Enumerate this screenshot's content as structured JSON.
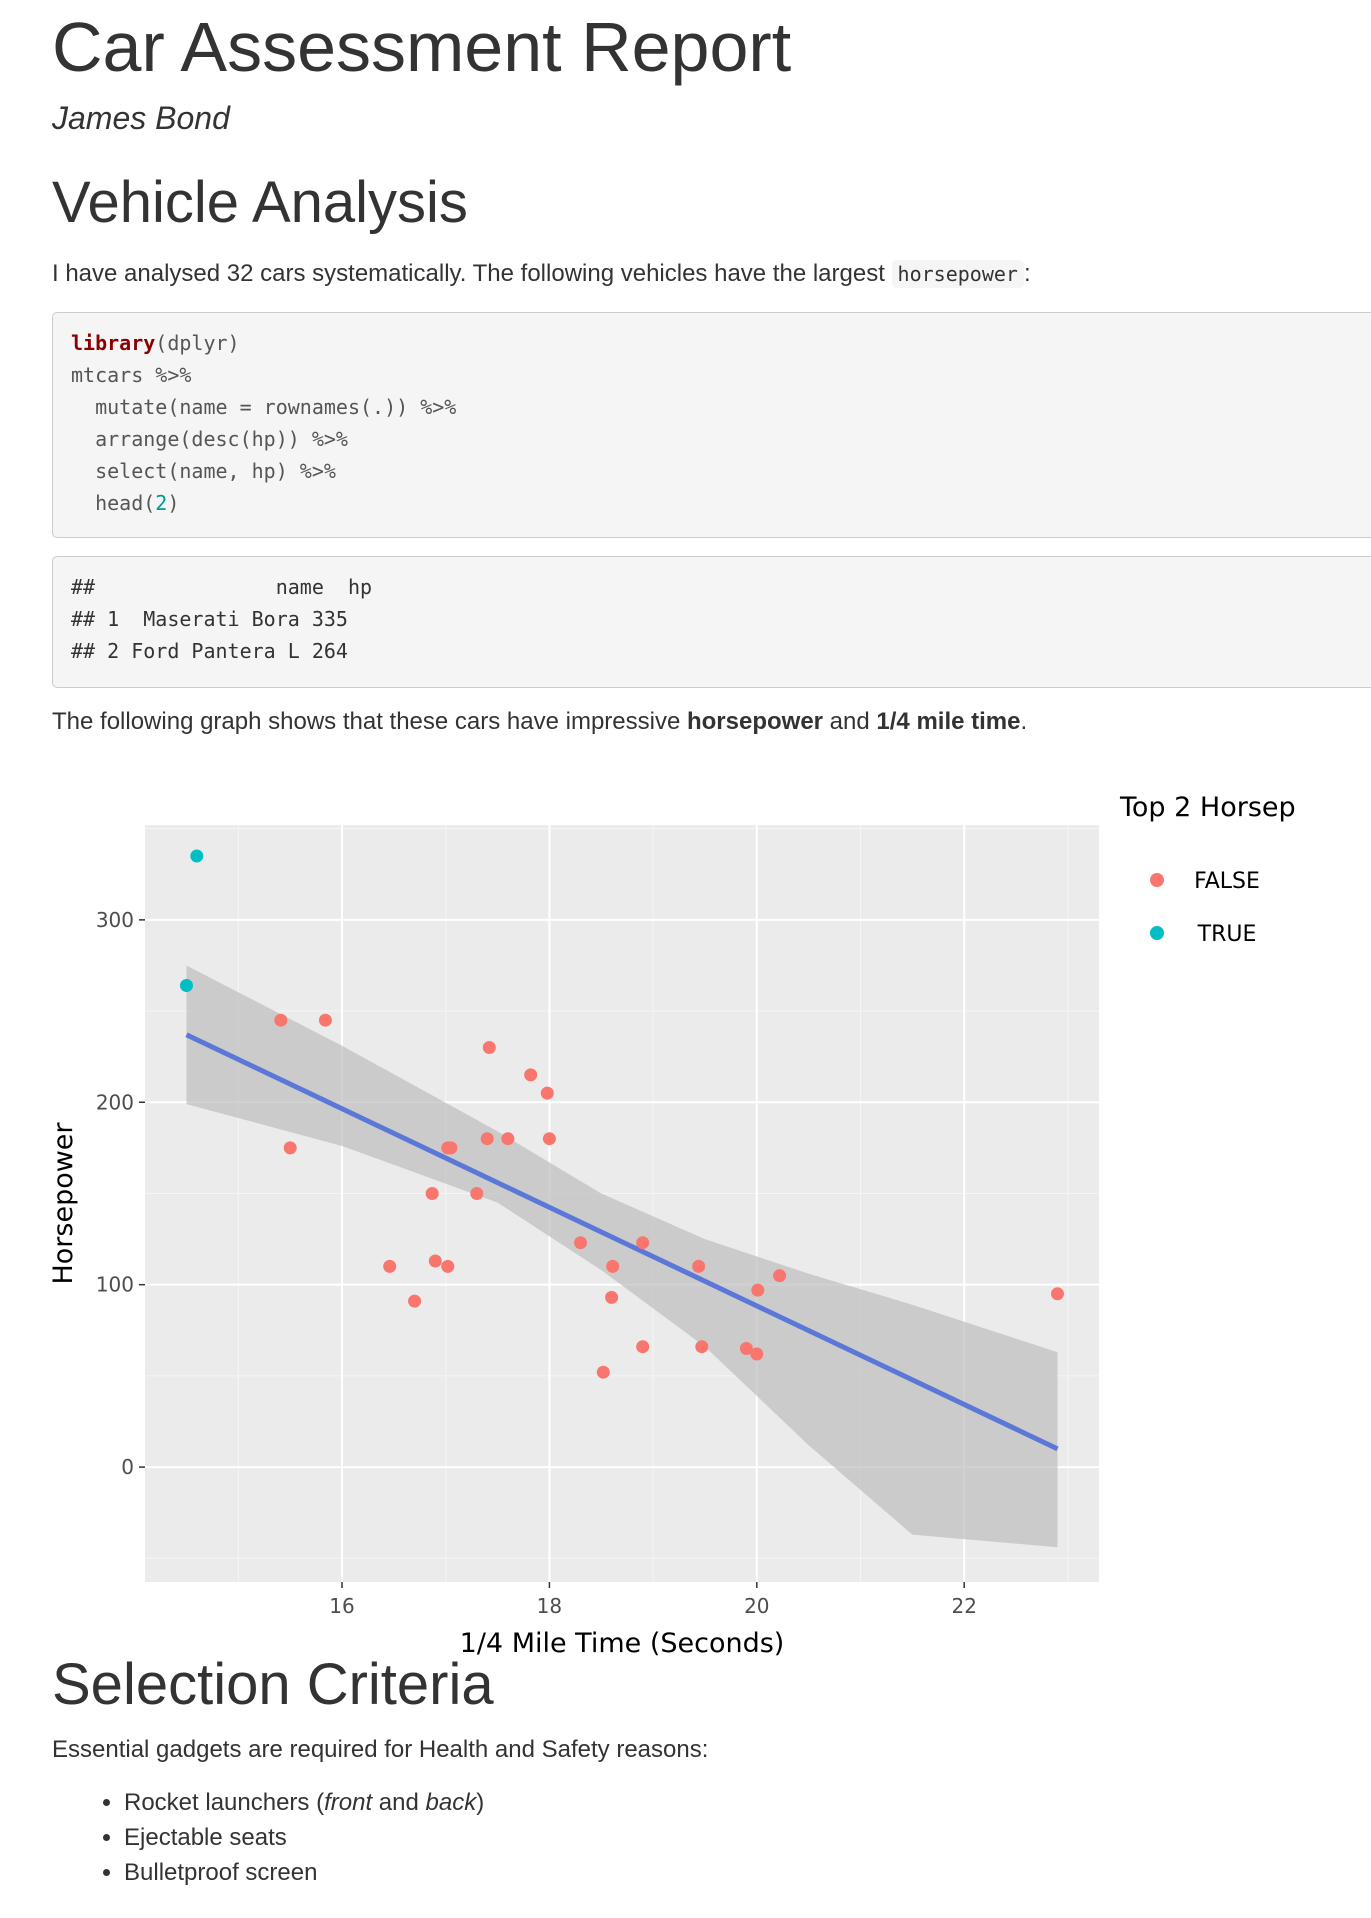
{
  "report": {
    "title": "Car Assessment Report",
    "author": "James Bond"
  },
  "analysis": {
    "heading": "Vehicle Analysis",
    "intro_prefix": "I have analysed 32 cars systematically. The following vehicles have the largest ",
    "intro_code": "horsepower",
    "intro_suffix": ":",
    "code_lines": [
      {
        "kw": "library",
        "rest": "(dplyr)"
      },
      {
        "kw": "",
        "rest": "mtcars %>%"
      },
      {
        "kw": "",
        "rest": "  mutate(name = rownames(.)) %>%"
      },
      {
        "kw": "",
        "rest": "  arrange(desc(hp)) %>%"
      },
      {
        "kw": "",
        "rest": "  select(name, hp) %>%"
      },
      {
        "kw": "",
        "rest": "  head(",
        "num": "2",
        "tail": ")"
      }
    ],
    "output_lines": [
      "##               name  hp",
      "## 1  Maserati Bora 335",
      "## 2 Ford Pantera L 264"
    ],
    "graph_prefix": "The following graph shows that these cars have impressive ",
    "graph_bold1": "horsepower",
    "graph_mid": " and ",
    "graph_bold2": "1/4 mile time",
    "graph_suffix": "."
  },
  "chart_data": {
    "type": "scatter",
    "title": "",
    "xlabel": "1/4 Mile Time (Seconds)",
    "ylabel": "Horsepower",
    "xlim": [
      14.1,
      23.3
    ],
    "ylim": [
      -63,
      352
    ],
    "xticks": [
      16,
      18,
      20,
      22
    ],
    "yticks": [
      0,
      100,
      200,
      300
    ],
    "grid": true,
    "legend_position": "right",
    "legend_title": "Top 2 Horsep",
    "series": [
      {
        "name": "FALSE",
        "color": "#F8766D",
        "points": [
          [
            15.41,
            245
          ],
          [
            15.84,
            245
          ],
          [
            15.5,
            175
          ],
          [
            17.42,
            230
          ],
          [
            17.82,
            215
          ],
          [
            17.98,
            205
          ],
          [
            17.02,
            175
          ],
          [
            17.05,
            175
          ],
          [
            17.4,
            180
          ],
          [
            17.6,
            180
          ],
          [
            18.0,
            180
          ],
          [
            16.87,
            150
          ],
          [
            17.3,
            150
          ],
          [
            16.46,
            110
          ],
          [
            16.9,
            113
          ],
          [
            17.02,
            110
          ],
          [
            16.7,
            91
          ],
          [
            18.3,
            123
          ],
          [
            18.61,
            110
          ],
          [
            18.9,
            123
          ],
          [
            18.6,
            93
          ],
          [
            18.52,
            52
          ],
          [
            19.44,
            110
          ],
          [
            18.9,
            66
          ],
          [
            19.47,
            66
          ],
          [
            19.9,
            65
          ],
          [
            20.0,
            62
          ],
          [
            20.01,
            97
          ],
          [
            20.22,
            105
          ],
          [
            22.9,
            95
          ]
        ]
      },
      {
        "name": "TRUE",
        "color": "#00BFC4",
        "points": [
          [
            14.6,
            335
          ],
          [
            14.5,
            264
          ]
        ]
      }
    ],
    "trend_line": {
      "color": "#5B77D8",
      "x": [
        14.5,
        22.9
      ],
      "y": [
        237,
        10
      ]
    },
    "confidence_band": {
      "color": "#bdbdbd",
      "x": [
        14.5,
        16.0,
        17.5,
        18.5,
        19.5,
        20.5,
        21.5,
        22.9
      ],
      "upper": [
        275,
        231,
        184,
        150,
        125,
        106,
        89,
        63
      ],
      "lower": [
        199,
        176,
        145,
        108,
        66,
        12,
        -37,
        -44
      ]
    }
  },
  "criteria": {
    "heading": "Selection Criteria",
    "intro": "Essential gadgets are required for Health and Safety reasons:",
    "item1_prefix": "Rocket launchers (",
    "item1_em1": "front",
    "item1_mid": " and ",
    "item1_em2": "back",
    "item1_suffix": ")",
    "item2": "Ejectable seats",
    "item3": "Bulletproof screen"
  }
}
